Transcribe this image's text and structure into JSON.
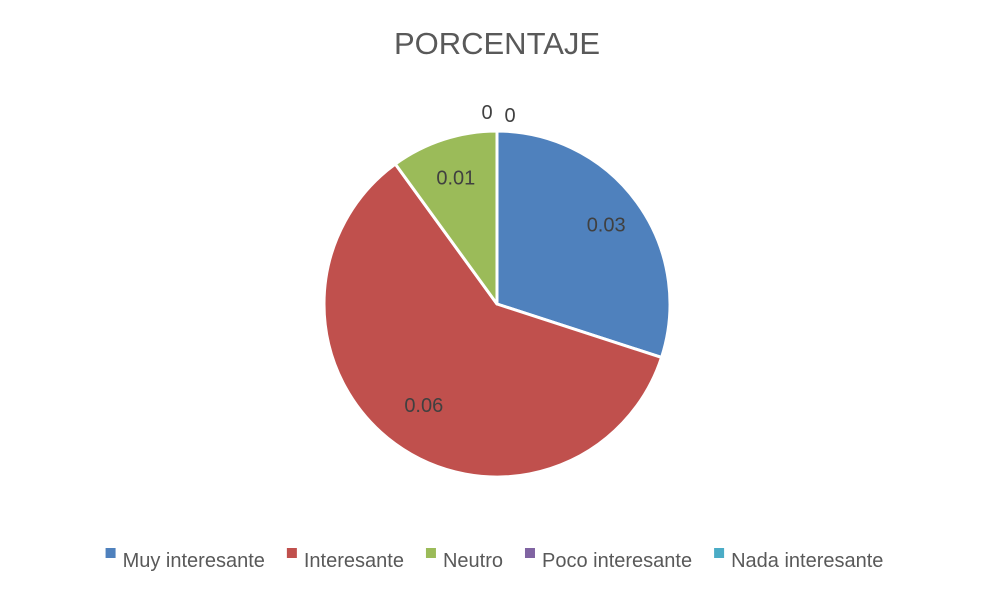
{
  "chart_data": {
    "type": "pie",
    "title": "PORCENTAJE",
    "categories": [
      "Muy interesante",
      "Interesante",
      "Neutro",
      "Poco interesante",
      "Nada interesante"
    ],
    "values": [
      0.03,
      0.06,
      0.01,
      0,
      0
    ],
    "slice_fractions": [
      0.3,
      0.6,
      0.1,
      0,
      0
    ],
    "data_labels": [
      "0.03",
      "0.06",
      "0.01",
      "0",
      "0"
    ],
    "colors": [
      "#4F81BD",
      "#C0504D",
      "#9BBB59",
      "#8064A2",
      "#4BACC6"
    ],
    "legend_position": "bottom"
  }
}
